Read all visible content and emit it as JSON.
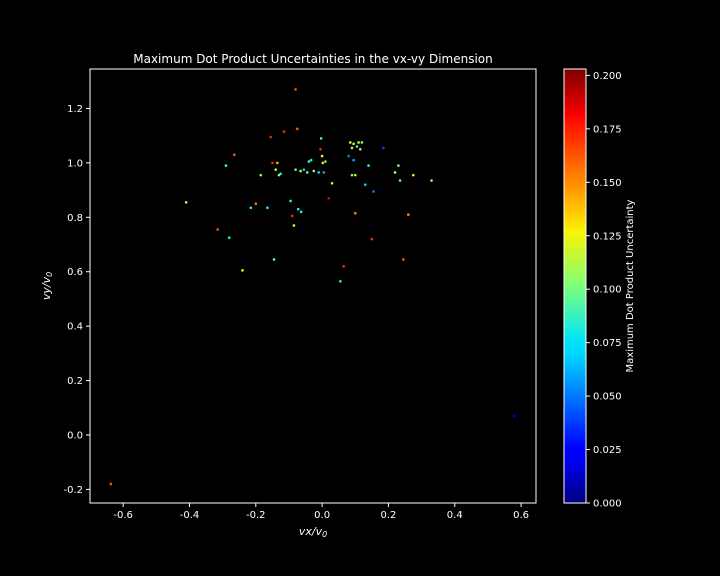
{
  "chart_data": {
    "type": "scatter",
    "title": "Maximum Dot Product Uncertainties in the vx-vy Dimension",
    "xlabel": "vx/v0",
    "ylabel": "vy/v0",
    "xlim": [
      -0.7,
      0.645
    ],
    "ylim": [
      -0.25,
      1.345
    ],
    "xticks": [
      "-0.6",
      "-0.4",
      "-0.2",
      "0.0",
      "0.2",
      "0.4",
      "0.6"
    ],
    "yticks": [
      "-0.2",
      "0.0",
      "0.2",
      "0.4",
      "0.6",
      "0.8",
      "1.0",
      "1.2"
    ],
    "grid": false,
    "colorbar": {
      "label": "Maximum Dot Product Uncertainty",
      "colormap": "jet",
      "range": [
        0.0,
        0.203
      ],
      "ticks": [
        "0.000",
        "0.025",
        "0.050",
        "0.075",
        "0.100",
        "0.125",
        "0.150",
        "0.175",
        "0.200"
      ]
    },
    "points": [
      {
        "x": -0.637,
        "y": -0.18,
        "c": 0.16
      },
      {
        "x": 0.58,
        "y": 0.07,
        "c": 0.02
      },
      {
        "x": -0.41,
        "y": 0.855,
        "c": 0.115
      },
      {
        "x": -0.315,
        "y": 0.755,
        "c": 0.16
      },
      {
        "x": -0.29,
        "y": 0.99,
        "c": 0.09
      },
      {
        "x": -0.28,
        "y": 0.725,
        "c": 0.08
      },
      {
        "x": -0.265,
        "y": 1.03,
        "c": 0.16
      },
      {
        "x": -0.24,
        "y": 0.605,
        "c": 0.13
      },
      {
        "x": -0.215,
        "y": 0.835,
        "c": 0.08
      },
      {
        "x": -0.2,
        "y": 0.85,
        "c": 0.155
      },
      {
        "x": -0.185,
        "y": 0.955,
        "c": 0.11
      },
      {
        "x": -0.165,
        "y": 0.835,
        "c": 0.08
      },
      {
        "x": -0.155,
        "y": 1.095,
        "c": 0.17
      },
      {
        "x": -0.15,
        "y": 1.0,
        "c": 0.17
      },
      {
        "x": -0.145,
        "y": 0.645,
        "c": 0.1
      },
      {
        "x": -0.14,
        "y": 0.975,
        "c": 0.12
      },
      {
        "x": -0.135,
        "y": 1.0,
        "c": 0.14
      },
      {
        "x": -0.13,
        "y": 0.955,
        "c": 0.11
      },
      {
        "x": -0.125,
        "y": 0.96,
        "c": 0.08
      },
      {
        "x": -0.115,
        "y": 1.115,
        "c": 0.17
      },
      {
        "x": -0.095,
        "y": 0.86,
        "c": 0.08
      },
      {
        "x": -0.09,
        "y": 0.805,
        "c": 0.17
      },
      {
        "x": -0.085,
        "y": 0.77,
        "c": 0.12
      },
      {
        "x": -0.08,
        "y": 1.27,
        "c": 0.16
      },
      {
        "x": -0.08,
        "y": 0.975,
        "c": 0.09
      },
      {
        "x": -0.075,
        "y": 1.125,
        "c": 0.16
      },
      {
        "x": -0.072,
        "y": 0.83,
        "c": 0.08
      },
      {
        "x": -0.065,
        "y": 0.97,
        "c": 0.12
      },
      {
        "x": -0.063,
        "y": 0.82,
        "c": 0.08
      },
      {
        "x": -0.055,
        "y": 0.975,
        "c": 0.07
      },
      {
        "x": -0.045,
        "y": 0.965,
        "c": 0.1
      },
      {
        "x": -0.04,
        "y": 1.005,
        "c": 0.09
      },
      {
        "x": -0.033,
        "y": 1.01,
        "c": 0.08
      },
      {
        "x": -0.025,
        "y": 0.97,
        "c": 0.11
      },
      {
        "x": -0.01,
        "y": 0.965,
        "c": 0.07
      },
      {
        "x": -0.005,
        "y": 1.05,
        "c": 0.17
      },
      {
        "x": -0.003,
        "y": 1.09,
        "c": 0.09
      },
      {
        "x": 0.0,
        "y": 1.025,
        "c": 0.12
      },
      {
        "x": 0.002,
        "y": 1.0,
        "c": 0.13
      },
      {
        "x": 0.005,
        "y": 0.965,
        "c": 0.06
      },
      {
        "x": 0.01,
        "y": 1.005,
        "c": 0.1
      },
      {
        "x": 0.02,
        "y": 0.87,
        "c": 0.18
      },
      {
        "x": 0.03,
        "y": 0.925,
        "c": 0.12
      },
      {
        "x": 0.055,
        "y": 0.565,
        "c": 0.08
      },
      {
        "x": 0.065,
        "y": 0.62,
        "c": 0.17
      },
      {
        "x": 0.08,
        "y": 1.025,
        "c": 0.05
      },
      {
        "x": 0.085,
        "y": 1.075,
        "c": 0.12
      },
      {
        "x": 0.09,
        "y": 0.955,
        "c": 0.1
      },
      {
        "x": 0.09,
        "y": 1.055,
        "c": 0.13
      },
      {
        "x": 0.095,
        "y": 1.07,
        "c": 0.11
      },
      {
        "x": 0.095,
        "y": 1.01,
        "c": 0.06
      },
      {
        "x": 0.1,
        "y": 0.955,
        "c": 0.12
      },
      {
        "x": 0.1,
        "y": 0.815,
        "c": 0.15
      },
      {
        "x": 0.105,
        "y": 1.06,
        "c": 0.09
      },
      {
        "x": 0.11,
        "y": 1.075,
        "c": 0.12
      },
      {
        "x": 0.115,
        "y": 1.05,
        "c": 0.11
      },
      {
        "x": 0.12,
        "y": 1.075,
        "c": 0.1
      },
      {
        "x": 0.13,
        "y": 0.92,
        "c": 0.07
      },
      {
        "x": 0.14,
        "y": 0.99,
        "c": 0.08
      },
      {
        "x": 0.15,
        "y": 0.72,
        "c": 0.17
      },
      {
        "x": 0.155,
        "y": 0.895,
        "c": 0.05
      },
      {
        "x": 0.185,
        "y": 1.055,
        "c": 0.04
      },
      {
        "x": 0.22,
        "y": 0.965,
        "c": 0.12
      },
      {
        "x": 0.23,
        "y": 0.99,
        "c": 0.1
      },
      {
        "x": 0.235,
        "y": 0.935,
        "c": 0.09
      },
      {
        "x": 0.245,
        "y": 0.645,
        "c": 0.16
      },
      {
        "x": 0.26,
        "y": 0.81,
        "c": 0.15
      },
      {
        "x": 0.275,
        "y": 0.955,
        "c": 0.12
      },
      {
        "x": 0.33,
        "y": 0.935,
        "c": 0.11
      }
    ]
  }
}
